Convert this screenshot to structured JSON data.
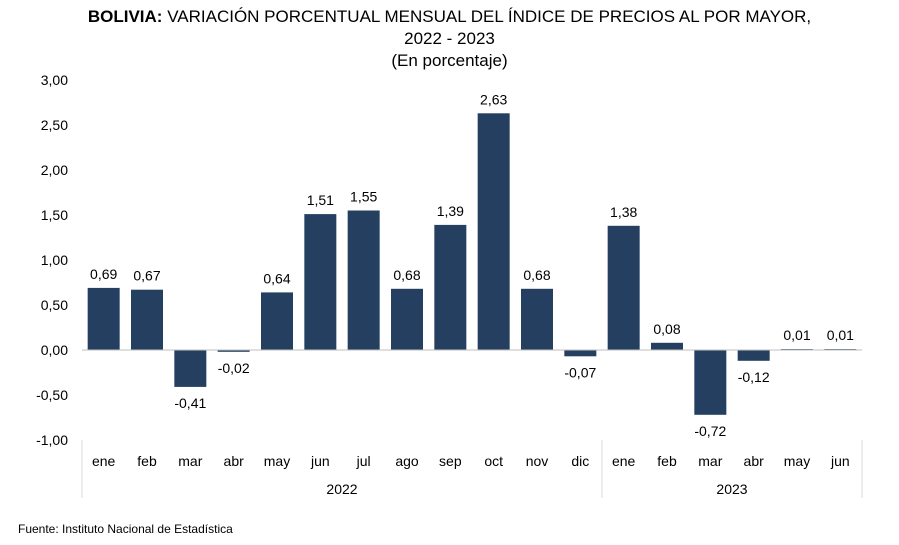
{
  "chart_data": {
    "type": "bar",
    "title_bold": "BOLIVIA:",
    "title": "VARIACIÓN PORCENTUAL MENSUAL DEL ÍNDICE DE PRECIOS AL POR MAYOR,",
    "title_line2": "2022 - 2023",
    "subtitle": "(En porcentaje)",
    "categories": [
      "ene",
      "feb",
      "mar",
      "abr",
      "may",
      "jun",
      "jul",
      "ago",
      "sep",
      "oct",
      "nov",
      "dic",
      "ene",
      "feb",
      "mar",
      "abr",
      "may",
      "jun"
    ],
    "groups": [
      {
        "label": "2022",
        "count": 12
      },
      {
        "label": "2023",
        "count": 6
      }
    ],
    "values": [
      0.69,
      0.67,
      -0.41,
      -0.02,
      0.64,
      1.51,
      1.55,
      0.68,
      1.39,
      2.63,
      0.68,
      -0.07,
      1.38,
      0.08,
      -0.72,
      -0.12,
      0.01,
      0.01
    ],
    "data_labels": [
      "0,69",
      "0,67",
      "-0,41",
      "-0,02",
      "0,64",
      "1,51",
      "1,55",
      "0,68",
      "1,39",
      "2,63",
      "0,68",
      "-0,07",
      "1,38",
      "0,08",
      "-0,72",
      "-0,12",
      "0,01",
      "0,01"
    ],
    "ylim": [
      -1,
      3
    ],
    "yticks": [
      "-1,00",
      "-0,50",
      "0,00",
      "0,50",
      "1,00",
      "1,50",
      "2,00",
      "2,50",
      "3,00"
    ],
    "grid": false,
    "bar_color": "#243F60",
    "source": "Fuente: Instituto Nacional de Estadística"
  }
}
